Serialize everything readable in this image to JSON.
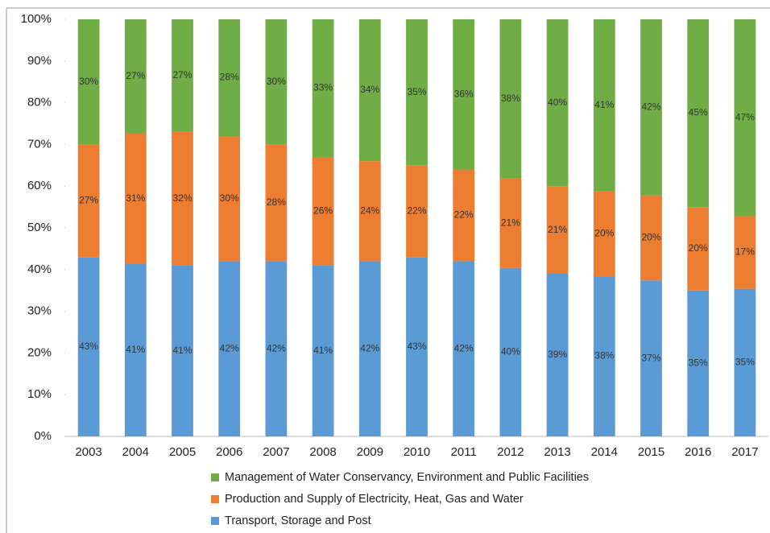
{
  "chart_data": {
    "type": "stacked_bar",
    "categories": [
      "2003",
      "2004",
      "2005",
      "2006",
      "2007",
      "2008",
      "2009",
      "2010",
      "2011",
      "2012",
      "2013",
      "2014",
      "2015",
      "2016",
      "2017"
    ],
    "series": [
      {
        "name": "Transport, Storage and Post",
        "color": "#5b9bd5",
        "values": [
          43,
          41.4,
          41,
          42,
          42,
          41,
          42,
          43,
          42,
          40.4,
          39,
          38.4,
          37.4,
          35,
          35.4
        ],
        "value_labels": [
          "43%",
          "41%",
          "41%",
          "42%",
          "42%",
          "41%",
          "42%",
          "43%",
          "42%",
          "40%",
          "39%",
          "38%",
          "37%",
          "35%",
          "35%"
        ]
      },
      {
        "name": "Production and Supply of Electricity, Heat, Gas and Water",
        "color": "#ed7d31",
        "values": [
          27,
          31.2,
          32,
          30,
          28,
          26,
          24,
          22,
          22,
          21.4,
          21,
          20.4,
          20.4,
          20,
          17.4
        ],
        "value_labels": [
          "27%",
          "31%",
          "32%",
          "30%",
          "28%",
          "26%",
          "24%",
          "22%",
          "22%",
          "21%",
          "21%",
          "20%",
          "20%",
          "20%",
          "17%"
        ]
      },
      {
        "name": "Management of Water Conservancy, Environment and Public Facilities",
        "color": "#70ad47",
        "values": [
          30,
          27.4,
          27,
          28,
          30,
          33,
          34,
          35,
          36,
          38.2,
          40,
          41.2,
          42.2,
          45,
          47.2
        ],
        "value_labels": [
          "30%",
          "27%",
          "27%",
          "28%",
          "30%",
          "33%",
          "34%",
          "35%",
          "36%",
          "38%",
          "40%",
          "41%",
          "42%",
          "45%",
          "47%"
        ]
      }
    ],
    "ylim": [
      0,
      100
    ],
    "yticks": [
      {
        "value": 0,
        "label": "0%"
      },
      {
        "value": 10,
        "label": "10%"
      },
      {
        "value": 20,
        "label": "20%"
      },
      {
        "value": 30,
        "label": "30%"
      },
      {
        "value": 40,
        "label": "40%"
      },
      {
        "value": 50,
        "label": "50%"
      },
      {
        "value": 60,
        "label": "60%"
      },
      {
        "value": 70,
        "label": "70%"
      },
      {
        "value": 80,
        "label": "80%"
      },
      {
        "value": 90,
        "label": "90%"
      },
      {
        "value": 100,
        "label": "100%"
      }
    ],
    "legend": "bottom",
    "grid": false
  }
}
